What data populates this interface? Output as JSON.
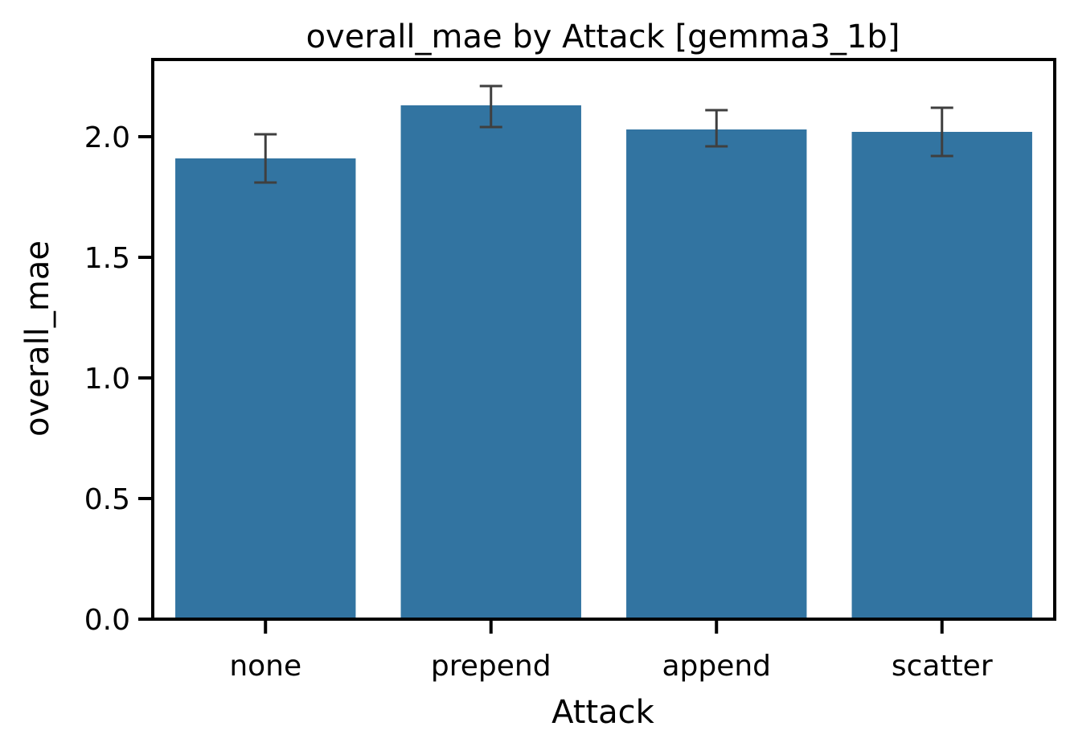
{
  "chart_data": {
    "type": "bar",
    "title": "overall_mae by Attack [gemma3_1b]",
    "xlabel": "Attack",
    "ylabel": "overall_mae",
    "categories": [
      "none",
      "prepend",
      "append",
      "scatter"
    ],
    "values": [
      1.91,
      2.13,
      2.03,
      2.02
    ],
    "error_low": [
      1.81,
      2.04,
      1.96,
      1.92
    ],
    "error_high": [
      2.01,
      2.21,
      2.11,
      2.12
    ],
    "ylim": [
      0,
      2.32
    ],
    "yticks": [
      0.0,
      0.5,
      1.0,
      1.5,
      2.0
    ],
    "ytick_labels": [
      "0.0",
      "0.5",
      "1.0",
      "1.5",
      "2.0"
    ],
    "grid": false,
    "colors": {
      "bar": "#3274a1",
      "errorbar": "#3f3f3f",
      "axis": "#000000"
    }
  }
}
